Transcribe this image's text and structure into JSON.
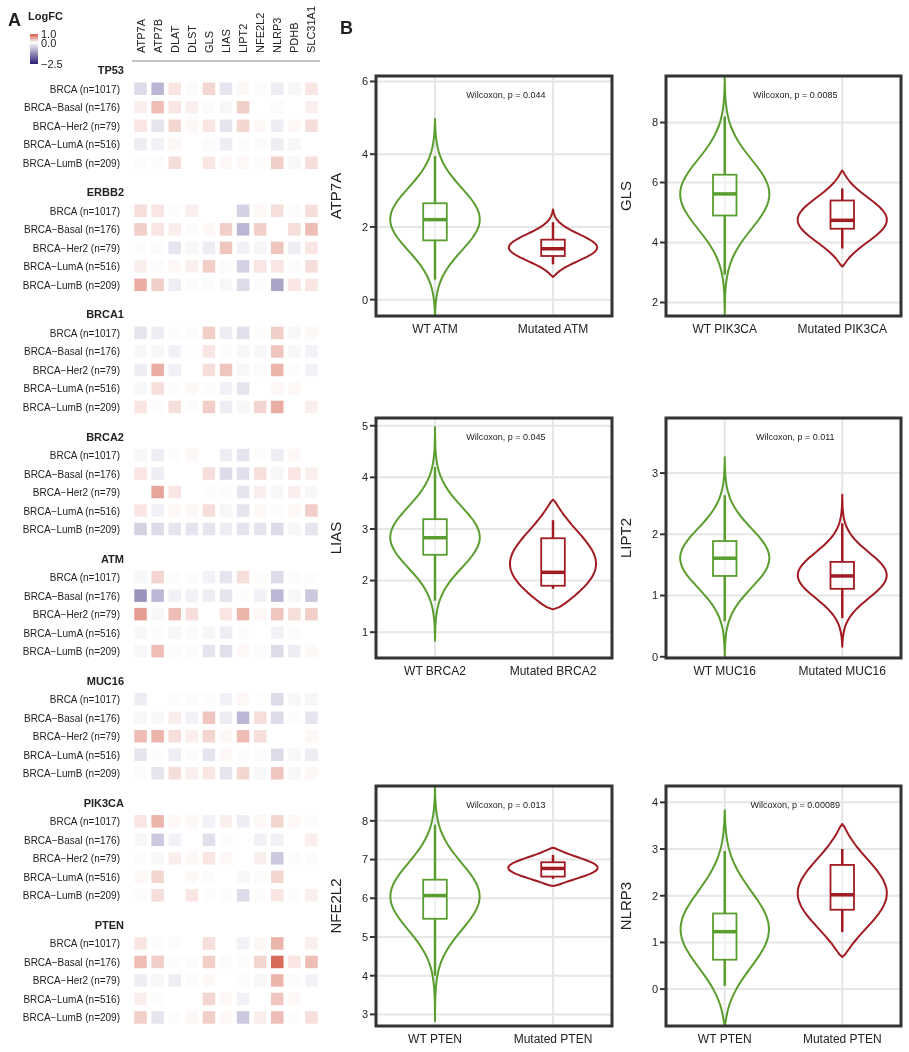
{
  "chart_data": [
    {
      "type": "heatmap",
      "annotations": [
        "A"
      ],
      "clabel": "LogFC",
      "clim": [
        -2.5,
        1
      ],
      "cticks": [
        {
          "value": 1,
          "label": "1.0"
        },
        {
          "value": 0,
          "label": "0.0"
        },
        {
          "value": -2.5,
          "label": "−2.5"
        }
      ],
      "categories": [
        "ATP7A",
        "ATP7B",
        "DLAT",
        "DLST",
        "GLS",
        "LIAS",
        "LIPT2",
        "NFE2L2",
        "NLRP3",
        "PDHB",
        "SLC31A1"
      ],
      "y_categories": [
        "TP53",
        "BRCA (n=1017)",
        "BRCA−Basal (n=176)",
        "BRCA−Her2 (n=79)",
        "BRCA−LumA (n=516)",
        "BRCA−LumB (n=209)",
        "ERBB2",
        "BRCA (n=1017)",
        "BRCA−Basal (n=176)",
        "BRCA−Her2 (n=79)",
        "BRCA−LumA (n=516)",
        "BRCA−LumB (n=209)",
        "BRCA1",
        "BRCA (n=1017)",
        "BRCA−Basal (n=176)",
        "BRCA−Her2 (n=79)",
        "BRCA−LumA (n=516)",
        "BRCA−LumB (n=209)",
        "BRCA2",
        "BRCA (n=1017)",
        "BRCA−Basal (n=176)",
        "BRCA−Her2 (n=79)",
        "BRCA−LumA (n=516)",
        "BRCA−LumB (n=209)",
        "ATM",
        "BRCA (n=1017)",
        "BRCA−Basal (n=176)",
        "BRCA−Her2 (n=79)",
        "BRCA−LumA (n=516)",
        "BRCA−LumB (n=209)",
        "MUC16",
        "BRCA (n=1017)",
        "BRCA−Basal (n=176)",
        "BRCA−Her2 (n=79)",
        "BRCA−LumA (n=516)",
        "BRCA−LumB (n=209)",
        "PIK3CA",
        "BRCA (n=1017)",
        "BRCA−Basal (n=176)",
        "BRCA−Her2 (n=79)",
        "BRCA−LumA (n=516)",
        "BRCA−LumB (n=209)",
        "PTEN",
        "BRCA (n=1017)",
        "BRCA−Basal (n=176)",
        "BRCA−Her2 (n=79)",
        "BRCA−LumA (n=516)",
        "BRCA−LumB (n=209)"
      ],
      "cells": [
        [
          null,
          null,
          null,
          null,
          null,
          null,
          null,
          null,
          null,
          null,
          null
        ],
        [
          -0.4,
          -0.8,
          0.15,
          -0.05,
          0.25,
          -0.3,
          0.05,
          -0.05,
          -0.2,
          -0.1,
          0.15
        ],
        [
          0.1,
          0.4,
          0.15,
          0.1,
          -0.05,
          -0.1,
          0.3,
          null,
          -0.05,
          null,
          0.1
        ],
        [
          0.15,
          -0.3,
          0.25,
          0.05,
          0.15,
          -0.3,
          0.25,
          0.05,
          -0.2,
          0.05,
          0.2
        ],
        [
          -0.2,
          -0.15,
          0.05,
          null,
          -0.05,
          -0.2,
          0.02,
          -0.05,
          -0.2,
          -0.1,
          null
        ],
        [
          -0.05,
          -0.05,
          0.2,
          null,
          0.15,
          0.05,
          0.05,
          0.02,
          0.3,
          -0.1,
          0.2
        ],
        [
          null,
          null,
          null,
          null,
          null,
          null,
          null,
          null,
          null,
          null,
          null
        ],
        [
          0.2,
          0.15,
          0.02,
          0.1,
          null,
          null,
          -0.5,
          0.05,
          0.2,
          -0.05,
          0.2
        ],
        [
          0.3,
          0.15,
          0.1,
          0.02,
          0.05,
          0.3,
          -0.8,
          0.3,
          null,
          0.2,
          0.4
        ],
        [
          0.02,
          -0.05,
          -0.3,
          -0.1,
          -0.2,
          0.35,
          -0.15,
          -0.1,
          0.35,
          -0.2,
          0.15
        ],
        [
          0.1,
          -0.05,
          0.05,
          0.1,
          0.3,
          -0.05,
          -0.5,
          0.15,
          0.15,
          -0.05,
          0.2
        ],
        [
          0.5,
          0.3,
          -0.2,
          -0.05,
          -0.05,
          -0.1,
          -0.4,
          -0.05,
          -1.0,
          0.15,
          0.15
        ],
        [
          null,
          null,
          null,
          null,
          null,
          null,
          null,
          null,
          null,
          null,
          null
        ],
        [
          -0.3,
          -0.2,
          0.02,
          0.02,
          0.3,
          -0.2,
          -0.35,
          0.02,
          0.3,
          -0.1,
          0.05
        ],
        [
          -0.1,
          -0.1,
          -0.15,
          -0.02,
          0.15,
          -0.05,
          -0.1,
          -0.1,
          0.35,
          -0.1,
          -0.15
        ],
        [
          -0.2,
          0.5,
          -0.15,
          null,
          0.2,
          0.35,
          -0.1,
          -0.05,
          0.45,
          0.02,
          -0.15
        ],
        [
          -0.1,
          0.2,
          0.02,
          0.05,
          0.02,
          -0.15,
          -0.3,
          null,
          0.05,
          0.05,
          null
        ],
        [
          0.15,
          0.02,
          0.2,
          0.02,
          0.3,
          -0.2,
          -0.1,
          0.25,
          0.5,
          null,
          0.1
        ],
        [
          null,
          null,
          null,
          null,
          null,
          null,
          null,
          null,
          null,
          null,
          null
        ],
        [
          -0.1,
          -0.2,
          0.02,
          0.05,
          null,
          -0.2,
          -0.3,
          0.02,
          -0.2,
          0.05,
          null
        ],
        [
          0.15,
          -0.2,
          null,
          null,
          0.2,
          -0.4,
          -0.35,
          0.2,
          -0.1,
          0.15,
          0.1
        ],
        [
          null,
          0.55,
          0.15,
          null,
          0.02,
          -0.05,
          -0.3,
          0.1,
          -0.1,
          0.1,
          -0.1
        ],
        [
          0.15,
          -0.15,
          0.05,
          0.05,
          0.2,
          -0.1,
          -0.3,
          0.05,
          0.02,
          0.05,
          0.3
        ],
        [
          -0.5,
          -0.4,
          -0.3,
          -0.3,
          -0.3,
          -0.2,
          -0.3,
          -0.3,
          -0.4,
          -0.1,
          -0.3
        ],
        [
          null,
          null,
          null,
          null,
          null,
          null,
          null,
          null,
          null,
          null,
          null
        ],
        [
          -0.1,
          0.25,
          0.02,
          0.02,
          -0.15,
          -0.3,
          0.2,
          0.02,
          -0.4,
          -0.05,
          0.02
        ],
        [
          -1.2,
          -0.8,
          -0.15,
          -0.15,
          -0.2,
          -0.3,
          0.02,
          -0.15,
          -0.8,
          -0.1,
          -0.6
        ],
        [
          0.6,
          -0.1,
          0.4,
          0.2,
          null,
          0.15,
          0.45,
          0.05,
          0.35,
          0.2,
          0.3
        ],
        [
          -0.1,
          0.02,
          -0.1,
          -0.05,
          -0.1,
          -0.2,
          0.02,
          null,
          -0.15,
          -0.05,
          null
        ],
        [
          -0.1,
          0.4,
          -0.05,
          -0.05,
          -0.3,
          -0.35,
          0.05,
          -0.05,
          -0.4,
          -0.2,
          0.05
        ],
        [
          null,
          null,
          null,
          null,
          null,
          null,
          null,
          null,
          null,
          null,
          null
        ],
        [
          -0.2,
          null,
          0.02,
          -0.05,
          0.02,
          -0.15,
          0.05,
          -0.02,
          -0.4,
          -0.1,
          -0.1
        ],
        [
          -0.1,
          -0.1,
          0.1,
          -0.15,
          0.35,
          -0.2,
          -0.8,
          0.2,
          -0.4,
          0.02,
          -0.3
        ],
        [
          0.4,
          0.45,
          0.2,
          0.1,
          0.25,
          0.05,
          0.4,
          0.2,
          null,
          null,
          0.05
        ],
        [
          -0.3,
          0.02,
          -0.2,
          -0.05,
          -0.3,
          0.05,
          0.02,
          -0.05,
          -0.4,
          -0.1,
          -0.2
        ],
        [
          -0.05,
          -0.3,
          0.2,
          0.1,
          0.15,
          -0.3,
          0.25,
          -0.1,
          0.35,
          -0.1,
          0.05
        ],
        [
          null,
          null,
          null,
          null,
          null,
          null,
          null,
          null,
          null,
          null,
          null
        ],
        [
          0.15,
          0.45,
          0.05,
          0.05,
          -0.15,
          0.1,
          -0.2,
          0.05,
          0.25,
          0.05,
          0.02
        ],
        [
          -0.1,
          -0.6,
          -0.15,
          null,
          -0.35,
          0.02,
          null,
          -0.15,
          -0.15,
          null,
          0.1
        ],
        [
          0.02,
          -0.1,
          0.1,
          0.05,
          0.15,
          0.05,
          null,
          0.1,
          -0.6,
          -0.05,
          -0.05
        ],
        [
          0.05,
          0.25,
          null,
          0.05,
          -0.05,
          null,
          -0.1,
          0.02,
          0.25,
          null,
          null
        ],
        [
          0.02,
          0.2,
          null,
          0.15,
          0.02,
          -0.05,
          -0.4,
          0.02,
          0.15,
          0.02,
          0.1
        ],
        [
          null,
          null,
          null,
          null,
          null,
          null,
          null,
          null,
          null,
          null,
          null
        ],
        [
          0.15,
          -0.05,
          -0.05,
          null,
          0.2,
          null,
          -0.15,
          0.05,
          0.45,
          null,
          0.1
        ],
        [
          0.4,
          0.3,
          0.02,
          0.02,
          0.3,
          -0.05,
          -0.05,
          0.25,
          0.9,
          0.15,
          0.4
        ],
        [
          -0.2,
          -0.1,
          -0.2,
          -0.05,
          0.05,
          null,
          0.02,
          -0.1,
          0.45,
          -0.05,
          -0.15
        ],
        [
          0.1,
          0.02,
          null,
          null,
          0.25,
          0.05,
          -0.15,
          null,
          0.35,
          0.05,
          null
        ],
        [
          0.3,
          -0.3,
          0.02,
          0.05,
          0.3,
          0.05,
          -0.6,
          0.1,
          0.4,
          0.02,
          0.2
        ]
      ]
    },
    {
      "type": "box",
      "annotations": [
        "B",
        "Wilcoxon, p = 0.044"
      ],
      "ylabel": "ATP7A",
      "categories": [
        "WT ATM",
        "Mutated ATM"
      ],
      "colors": [
        "#5a9e2f",
        "#a01c22"
      ],
      "ylim": [
        -0.45,
        6.15
      ],
      "yticks": [
        0,
        2,
        4,
        6
      ],
      "grid": true,
      "boxes": [
        {
          "low": 0.55,
          "q1": 1.63,
          "median": 2.2,
          "q3": 2.65,
          "high": 3.95
        },
        {
          "low": 0.97,
          "q1": 1.2,
          "median": 1.4,
          "q3": 1.65,
          "high": 2.13
        }
      ]
    },
    {
      "type": "box",
      "annotations": [
        "Wilcoxon, p = 0.0085"
      ],
      "ylabel": "GLS",
      "categories": [
        "WT PIK3CA",
        "Mutated PIK3CA"
      ],
      "colors": [
        "#5a9e2f",
        "#a01c22"
      ],
      "ylim": [
        1.55,
        9.55
      ],
      "yticks": [
        2,
        4,
        6,
        8
      ],
      "grid": true,
      "boxes": [
        {
          "low": 2.93,
          "q1": 4.9,
          "median": 5.62,
          "q3": 6.26,
          "high": 8.2
        },
        {
          "low": 3.8,
          "q1": 4.46,
          "median": 4.74,
          "q3": 5.4,
          "high": 5.8
        }
      ]
    },
    {
      "type": "box",
      "annotations": [
        "Wilcoxon, p = 0.045"
      ],
      "ylabel": "LIAS",
      "categories": [
        "WT BRCA2",
        "Mutated BRCA2"
      ],
      "colors": [
        "#5a9e2f",
        "#a01c22"
      ],
      "ylim": [
        0.5,
        5.15
      ],
      "yticks": [
        1,
        2,
        3,
        4,
        5
      ],
      "grid": true,
      "boxes": [
        {
          "low": 1.61,
          "q1": 2.5,
          "median": 2.83,
          "q3": 3.19,
          "high": 4.2
        },
        {
          "low": 1.84,
          "q1": 1.9,
          "median": 2.16,
          "q3": 2.82,
          "high": 3.17
        }
      ]
    },
    {
      "type": "box",
      "annotations": [
        "Wilcoxon, p = 0.011"
      ],
      "ylabel": "LIPT2",
      "categories": [
        "WT MUC16",
        "Mutated MUC16"
      ],
      "colors": [
        "#5a9e2f",
        "#a01c22"
      ],
      "ylim": [
        -0.02,
        3.9
      ],
      "yticks": [
        0,
        1,
        2,
        3
      ],
      "grid": true,
      "boxes": [
        {
          "low": 0.58,
          "q1": 1.32,
          "median": 1.61,
          "q3": 1.89,
          "high": 2.64
        },
        {
          "low": 0.63,
          "q1": 1.11,
          "median": 1.32,
          "q3": 1.55,
          "high": 2.18
        }
      ]
    },
    {
      "type": "box",
      "annotations": [
        "Wilcoxon, p = 0.013"
      ],
      "ylabel": "NFE2L2",
      "categories": [
        "WT PTEN",
        "Mutated PTEN"
      ],
      "colors": [
        "#5a9e2f",
        "#a01c22"
      ],
      "ylim": [
        2.7,
        8.9
      ],
      "yticks": [
        3,
        4,
        5,
        6,
        7,
        8
      ],
      "grid": true,
      "boxes": [
        {
          "low": 4.0,
          "q1": 5.47,
          "median": 6.07,
          "q3": 6.48,
          "high": 7.9
        },
        {
          "low": 6.5,
          "q1": 6.56,
          "median": 6.77,
          "q3": 6.93,
          "high": 7.12
        }
      ]
    },
    {
      "type": "box",
      "annotations": [
        "Wilcoxon, p = 0.00089"
      ],
      "ylabel": "NLRP3",
      "categories": [
        "WT PTEN",
        "Mutated PTEN"
      ],
      "colors": [
        "#5a9e2f",
        "#a01c22"
      ],
      "ylim": [
        -0.79,
        4.35
      ],
      "yticks": [
        0,
        1,
        2,
        3,
        4
      ],
      "grid": true,
      "boxes": [
        {
          "low": 0.07,
          "q1": 0.63,
          "median": 1.23,
          "q3": 1.62,
          "high": 2.96
        },
        {
          "low": 1.22,
          "q1": 1.7,
          "median": 2.02,
          "q3": 2.66,
          "high": 3.0
        }
      ]
    }
  ]
}
